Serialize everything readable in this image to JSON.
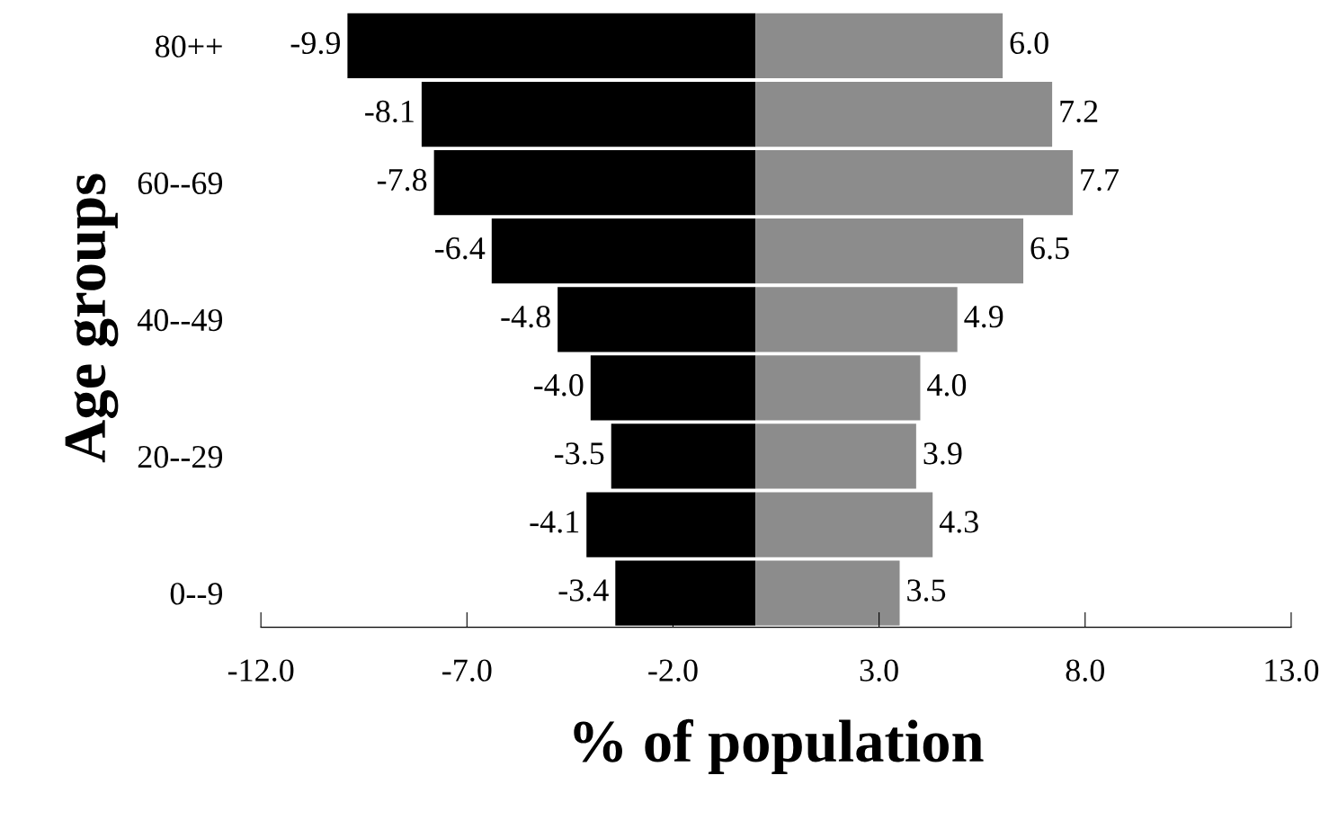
{
  "chart_data": {
    "type": "bar",
    "orientation": "horizontal",
    "xlabel": "% of population",
    "ylabel": "Age groups",
    "categories": [
      "80++",
      null,
      "60--69",
      null,
      "40--49",
      null,
      "20--29",
      null,
      "0--9"
    ],
    "series": [
      {
        "color": "#000000",
        "values": [
          -9.9,
          -8.1,
          -7.8,
          -6.4,
          -4.8,
          -4.0,
          -3.5,
          -4.1,
          -3.4
        ],
        "value_labels": [
          "-9.9",
          "-8.1",
          "-7.8",
          "-6.4",
          "-4.8",
          "-4.0",
          "-3.5",
          "-4.1",
          "-3.4"
        ]
      },
      {
        "color": "#8c8c8c",
        "values": [
          6.0,
          7.2,
          7.7,
          6.5,
          4.9,
          4.0,
          3.9,
          4.3,
          3.5
        ],
        "value_labels": [
          "6.0",
          "7.2",
          "7.7",
          "6.5",
          "4.9",
          "4.0",
          "3.9",
          "4.3",
          "3.5"
        ]
      }
    ],
    "xlim": [
      -12,
      13
    ],
    "xticks": [
      {
        "value": -12,
        "label": "-12.0"
      },
      {
        "value": -7,
        "label": "-7.0"
      },
      {
        "value": -2,
        "label": "-2.0"
      },
      {
        "value": 3,
        "label": "3.0"
      },
      {
        "value": 8,
        "label": "8.0"
      },
      {
        "value": 13,
        "label": "13.0"
      }
    ],
    "stacked": true,
    "grid": false,
    "legend": false
  }
}
